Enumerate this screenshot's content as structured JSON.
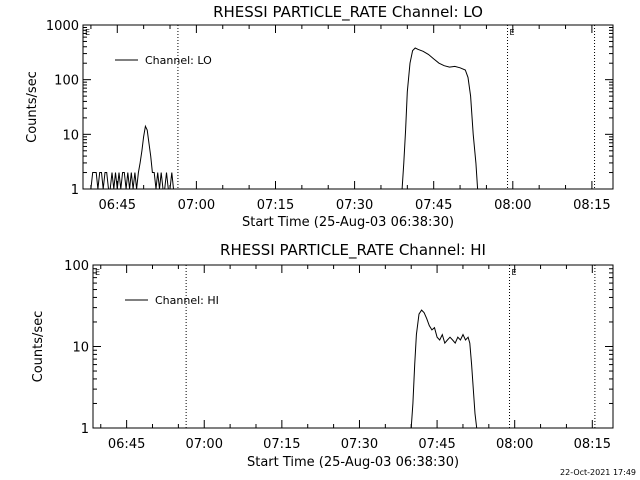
{
  "chart_data": [
    {
      "type": "line",
      "title": "RHESSI PARTICLE_RATE Channel: LO",
      "xlabel": "Start Time (25-Aug-03 06:38:30)",
      "ylabel": "Counts/sec",
      "yscale": "log",
      "xlim": [
        "06:38:30",
        "08:19:00"
      ],
      "ylim": [
        1,
        1000
      ],
      "x_ticks": [
        "06:45",
        "07:00",
        "07:15",
        "07:30",
        "07:45",
        "08:00",
        "08:15"
      ],
      "y_ticks": [
        "1",
        "10",
        "100",
        "1000"
      ],
      "legend": {
        "label": "Channel: LO",
        "position": "top-left"
      },
      "markers": [
        {
          "time": "06:56:30",
          "label": ""
        },
        {
          "time": "07:59:00",
          "label": "E"
        },
        {
          "time": "08:15:30",
          "label": ""
        }
      ],
      "edge_marker": {
        "label": "E",
        "side": "left"
      },
      "series": [
        {
          "x": [
            "06:40:00",
            "06:40:20",
            "06:40:40",
            "06:41:00",
            "06:41:20",
            "06:41:40",
            "06:42:00",
            "06:42:20",
            "06:42:40",
            "06:43:00",
            "06:43:20",
            "06:43:40",
            "06:44:00",
            "06:44:20",
            "06:44:40",
            "06:45:00",
            "06:45:20",
            "06:45:40",
            "06:46:00",
            "06:46:20",
            "06:46:40",
            "06:47:00",
            "06:47:20",
            "06:47:40",
            "06:48:00",
            "06:48:20",
            "06:48:40",
            "06:49:00",
            "06:49:20",
            "06:49:40",
            "06:50:00",
            "06:50:20",
            "06:50:40",
            "06:51:00",
            "06:51:20",
            "06:51:40",
            "06:52:00",
            "06:52:20",
            "06:52:40",
            "06:53:00",
            "06:53:20",
            "06:53:40",
            "06:54:00",
            "06:54:20",
            "06:54:40",
            "06:55:00",
            "06:55:20",
            "06:55:40",
            "06:56:00",
            "07:39:00",
            "07:39:20",
            "07:39:40",
            "07:40:00",
            "07:40:30",
            "07:41:00",
            "07:41:30",
            "07:42:00",
            "07:43:00",
            "07:44:00",
            "07:45:00",
            "07:46:00",
            "07:47:00",
            "07:48:00",
            "07:49:00",
            "07:50:00",
            "07:51:00",
            "07:51:30",
            "07:52:00",
            "07:52:30",
            "07:53:00",
            "07:53:20"
          ],
          "y": [
            1,
            2,
            2,
            2,
            1,
            2,
            2,
            1,
            2,
            2,
            1,
            1,
            2,
            1,
            2,
            1,
            2,
            1,
            2,
            2,
            1,
            2,
            1,
            2,
            1,
            2,
            1,
            2,
            3,
            5,
            9,
            14,
            12,
            7,
            4,
            2,
            2,
            1,
            2,
            1,
            2,
            1,
            1,
            2,
            1,
            1,
            2,
            1,
            1,
            1,
            3,
            12,
            60,
            200,
            340,
            380,
            360,
            330,
            290,
            240,
            200,
            180,
            170,
            175,
            165,
            150,
            110,
            50,
            10,
            3,
            1
          ],
          "gaps_after": [
            48
          ]
        }
      ]
    },
    {
      "type": "line",
      "title": "RHESSI PARTICLE_RATE Channel: HI",
      "xlabel": "Start Time (25-Aug-03 06:38:30)",
      "ylabel": "Counts/sec",
      "yscale": "log",
      "xlim": [
        "06:38:30",
        "08:19:00"
      ],
      "ylim": [
        1,
        100
      ],
      "x_ticks": [
        "06:45",
        "07:00",
        "07:15",
        "07:30",
        "07:45",
        "08:00",
        "08:15"
      ],
      "y_ticks": [
        "1",
        "10",
        "100"
      ],
      "legend": {
        "label": "Channel: HI",
        "position": "top-left"
      },
      "markers": [
        {
          "time": "06:56:30",
          "label": ""
        },
        {
          "time": "07:59:00",
          "label": "E"
        },
        {
          "time": "08:15:30",
          "label": ""
        }
      ],
      "edge_marker": {
        "label": "E",
        "side": "left"
      },
      "series": [
        {
          "x": [
            "07:40:00",
            "07:40:20",
            "07:40:40",
            "07:41:00",
            "07:41:30",
            "07:42:00",
            "07:42:30",
            "07:43:00",
            "07:43:30",
            "07:44:00",
            "07:44:30",
            "07:45:00",
            "07:45:30",
            "07:46:00",
            "07:46:30",
            "07:47:00",
            "07:47:30",
            "07:48:00",
            "07:48:30",
            "07:49:00",
            "07:49:30",
            "07:50:00",
            "07:50:30",
            "07:51:00",
            "07:51:20",
            "07:51:40",
            "07:52:00",
            "07:52:20",
            "07:52:40"
          ],
          "y": [
            1,
            2,
            6,
            14,
            25,
            28,
            26,
            22,
            18,
            16,
            17,
            13,
            12,
            14,
            11,
            12,
            13,
            12,
            11,
            13,
            12,
            14,
            12,
            13,
            11,
            6,
            3,
            1.5,
            1
          ],
          "gaps_after": []
        }
      ]
    }
  ],
  "footer": {
    "timestamp": "22-Oct-2021 17:49"
  }
}
